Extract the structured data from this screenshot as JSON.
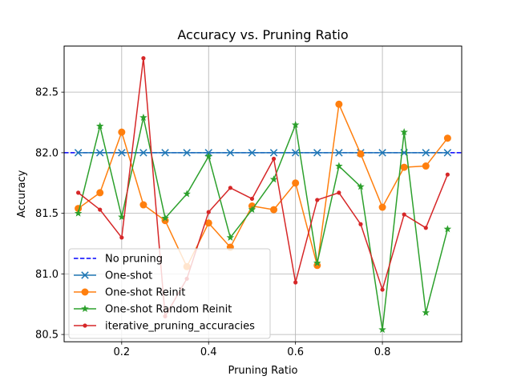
{
  "chart_data": {
    "type": "line",
    "title": "Accuracy vs. Pruning Ratio",
    "xlabel": "Pruning Ratio",
    "ylabel": "Accuracy",
    "xlim": [
      0.0675,
      0.9825
    ],
    "ylim": [
      80.44,
      82.88
    ],
    "xticks": [
      0.2,
      0.4,
      0.6,
      0.8
    ],
    "xtick_labels": [
      "0.2",
      "0.4",
      "0.6",
      "0.8"
    ],
    "yticks": [
      80.5,
      81.0,
      81.5,
      82.0,
      82.5
    ],
    "ytick_labels": [
      "80.5",
      "81.0",
      "81.5",
      "82.0",
      "82.5"
    ],
    "grid": true,
    "legend_position": "lower-left",
    "x": [
      0.1,
      0.15,
      0.2,
      0.25,
      0.3,
      0.35,
      0.4,
      0.45,
      0.5,
      0.55,
      0.6,
      0.65,
      0.7,
      0.75,
      0.8,
      0.85,
      0.9,
      0.95
    ],
    "hline": {
      "name": "No pruning",
      "y": 82.0,
      "color": "#0000ff",
      "style": "dashed"
    },
    "series": [
      {
        "name": "One-shot",
        "color": "#1f77b4",
        "marker": "x",
        "values": [
          82.0,
          82.0,
          82.0,
          82.0,
          82.0,
          82.0,
          82.0,
          82.0,
          82.0,
          82.0,
          82.0,
          82.0,
          82.0,
          82.0,
          82.0,
          82.0,
          82.0,
          82.0
        ]
      },
      {
        "name": "One-shot Reinit",
        "color": "#ff7f0e",
        "marker": "circle",
        "values": [
          81.54,
          81.67,
          82.17,
          81.57,
          81.44,
          81.06,
          81.42,
          81.22,
          81.56,
          81.53,
          81.75,
          81.07,
          82.4,
          81.99,
          81.55,
          81.88,
          81.89,
          82.12
        ]
      },
      {
        "name": "One-shot Random Reinit",
        "color": "#2ca02c",
        "marker": "star",
        "values": [
          81.5,
          82.22,
          81.47,
          82.29,
          81.46,
          81.66,
          81.97,
          81.3,
          81.53,
          81.78,
          82.23,
          81.09,
          81.89,
          81.72,
          80.54,
          82.17,
          80.68,
          81.37
        ]
      },
      {
        "name": "iterative_pruning_accuracies",
        "color": "#d62728",
        "marker": "dot",
        "values": [
          81.67,
          81.53,
          81.3,
          82.78,
          80.65,
          80.96,
          81.51,
          81.71,
          81.62,
          81.95,
          80.93,
          81.61,
          81.67,
          81.41,
          80.87,
          81.49,
          81.38,
          81.82
        ]
      }
    ]
  }
}
